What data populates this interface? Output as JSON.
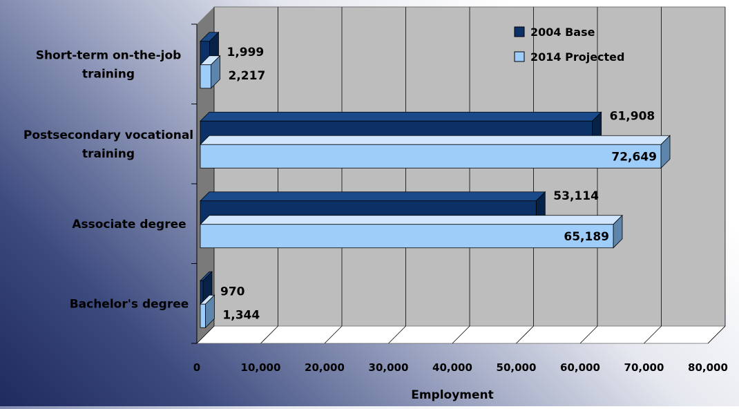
{
  "chart_data": {
    "type": "bar",
    "orientation": "horizontal",
    "categories": [
      "Bachelor's degree",
      "Associate degree",
      "Postsecondary vocational training",
      "Short-term on-the-job training"
    ],
    "category_label_lines": [
      [
        "Bachelor's degree"
      ],
      [
        "Associate degree"
      ],
      [
        "Postsecondary vocational",
        "training"
      ],
      [
        "Short-term on-the-job",
        "training"
      ]
    ],
    "series": [
      {
        "name": "2004 Base",
        "values": [
          970,
          53114,
          61908,
          1999
        ],
        "labels": [
          "970",
          "53,114",
          "61,908",
          "1,999"
        ]
      },
      {
        "name": "2014 Projected",
        "values": [
          1344,
          65189,
          72649,
          2217
        ],
        "labels": [
          "1,344",
          "65,189",
          "72,649",
          "2,217"
        ]
      }
    ],
    "colors": {
      "series0_front": "#0b3166",
      "series0_top": "#1a4a8a",
      "series0_side": "#062347",
      "series1_front": "#9fcdfa",
      "series1_top": "#cfe6fc",
      "series1_side": "#5e86ad",
      "wall": "#bdbdbd",
      "floor": "#ffffff",
      "sidewall": "#7a7a7a",
      "grid": "#000000"
    },
    "xlabel": "Employment",
    "ylabel": "",
    "xlim": [
      0,
      80000
    ],
    "xticks": [
      0,
      10000,
      20000,
      30000,
      40000,
      50000,
      60000,
      70000,
      80000
    ],
    "xtick_labels": [
      "0",
      "10,000",
      "20,000",
      "30,000",
      "40,000",
      "50,000",
      "60,000",
      "70,000",
      "80,000"
    ],
    "grid": "vertical",
    "legend_position": "top-right"
  }
}
